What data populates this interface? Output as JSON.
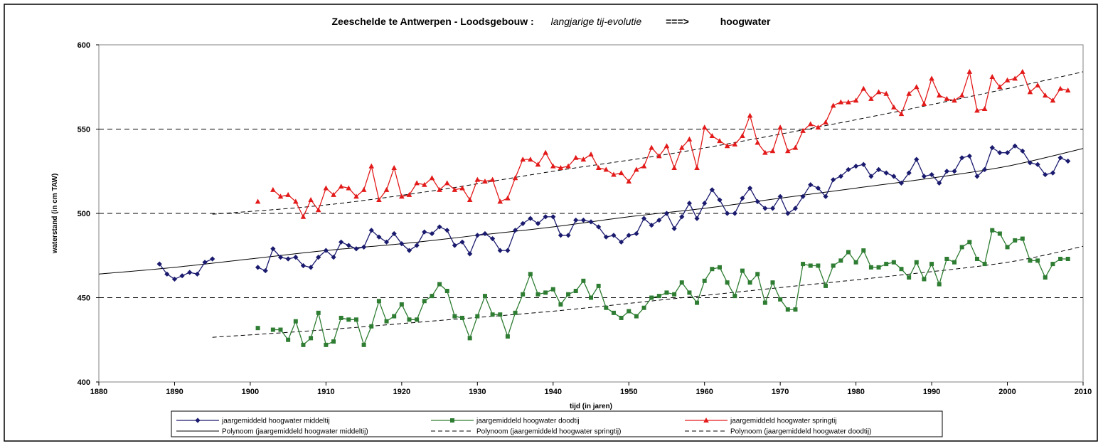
{
  "chart_data": {
    "type": "line",
    "title_parts": [
      "Zeeschelde te Antwerpen - Loodsgebouw :",
      "langjarige tij-evolutie",
      "===>",
      "hoogwater"
    ],
    "xlabel": "tijd   (in jaren)",
    "ylabel": "waterstand  (in cm TAW)",
    "xlim": [
      1880,
      2010
    ],
    "ylim": [
      400,
      600
    ],
    "xticks": [
      1880,
      1890,
      1900,
      1910,
      1920,
      1930,
      1940,
      1950,
      1960,
      1970,
      1980,
      1990,
      2000,
      2010
    ],
    "yticks": [
      400,
      450,
      500,
      550,
      600
    ],
    "grid": "horizontal-dashed",
    "legend_position": "bottom",
    "series": [
      {
        "name": "jaargemiddeld hoogwater middeltij",
        "color": "#1a1a6e",
        "marker": "diamond",
        "segments": [
          {
            "x": [
              1888,
              1889,
              1890,
              1891,
              1892,
              1893,
              1894,
              1895
            ],
            "y": [
              470,
              464,
              461,
              463,
              465,
              464,
              471,
              473
            ]
          },
          {
            "x": [
              1901,
              1902,
              1903,
              1904,
              1905,
              1906,
              1907,
              1908,
              1909,
              1910,
              1911,
              1912,
              1913,
              1914,
              1915,
              1916,
              1917,
              1918,
              1919,
              1920,
              1921,
              1922,
              1923,
              1924,
              1925,
              1926,
              1927,
              1928,
              1929,
              1930,
              1931,
              1932,
              1933,
              1934,
              1935,
              1936,
              1937,
              1938,
              1939,
              1940,
              1941,
              1942,
              1943,
              1944,
              1945,
              1946,
              1947,
              1948,
              1949,
              1950,
              1951,
              1952,
              1953,
              1954,
              1955,
              1956,
              1957,
              1958,
              1959,
              1960,
              1961,
              1962,
              1963,
              1964,
              1965,
              1966,
              1967,
              1968,
              1969,
              1970,
              1971,
              1972,
              1973,
              1974,
              1975,
              1976,
              1977,
              1978,
              1979,
              1980,
              1981,
              1982,
              1983,
              1984,
              1985,
              1986,
              1987,
              1988,
              1989,
              1990,
              1991,
              1992,
              1993,
              1994,
              1995,
              1996,
              1997,
              1998,
              1999,
              2000,
              2001,
              2002,
              2003,
              2004,
              2005,
              2006,
              2007,
              2008
            ],
            "y": [
              468,
              466,
              479,
              474,
              473,
              474,
              469,
              468,
              474,
              478,
              474,
              483,
              481,
              479,
              480,
              490,
              486,
              483,
              488,
              482,
              478,
              481,
              489,
              488,
              492,
              490,
              481,
              483,
              476,
              487,
              488,
              485,
              478,
              478,
              490,
              494,
              497,
              494,
              498,
              498,
              487,
              487,
              496,
              496,
              495,
              492,
              486,
              487,
              483,
              487,
              488,
              497,
              493,
              496,
              500,
              491,
              498,
              506,
              497,
              506,
              514,
              508,
              500,
              500,
              509,
              515,
              507,
              503,
              503,
              510,
              500,
              503,
              510,
              517,
              515,
              510,
              520,
              522,
              526,
              528,
              529,
              522,
              526,
              524,
              522,
              518,
              524,
              532,
              522,
              523,
              518,
              525,
              525,
              533,
              534,
              522,
              526,
              539,
              536,
              536,
              540,
              537,
              530,
              529,
              523,
              524,
              533,
              531
            ]
          }
        ]
      },
      {
        "name": "jaargemiddeld hoogwater doodtij",
        "color": "#2e7d32",
        "marker": "square",
        "segments": [
          {
            "x": [
              1901
            ],
            "y": [
              432
            ]
          },
          {
            "x": [
              1903,
              1904,
              1905,
              1906,
              1907,
              1908,
              1909,
              1910,
              1911,
              1912,
              1913,
              1914,
              1915,
              1916,
              1917,
              1918,
              1919,
              1920,
              1921,
              1922,
              1923,
              1924,
              1925,
              1926,
              1927,
              1928,
              1929,
              1930,
              1931,
              1932,
              1933,
              1934,
              1935,
              1936,
              1937,
              1938,
              1939,
              1940,
              1941,
              1942,
              1943,
              1944,
              1945,
              1946,
              1947,
              1948,
              1949,
              1950,
              1951,
              1952,
              1953,
              1954,
              1955,
              1956,
              1957,
              1958,
              1959,
              1960,
              1961,
              1962,
              1963,
              1964,
              1965,
              1966,
              1967,
              1968,
              1969,
              1970,
              1971,
              1972,
              1973,
              1974,
              1975,
              1976,
              1977,
              1978,
              1979,
              1980,
              1981,
              1982,
              1983,
              1984,
              1985,
              1986,
              1987,
              1988,
              1989,
              1990,
              1991,
              1992,
              1993,
              1994,
              1995,
              1996,
              1997,
              1998,
              1999,
              2000,
              2001,
              2002,
              2003,
              2004,
              2005,
              2006,
              2007,
              2008
            ],
            "y": [
              431,
              431,
              425,
              436,
              422,
              426,
              441,
              422,
              424,
              438,
              437,
              437,
              422,
              433,
              448,
              436,
              439,
              446,
              437,
              437,
              448,
              451,
              458,
              454,
              439,
              438,
              426,
              439,
              451,
              440,
              440,
              427,
              441,
              452,
              464,
              452,
              453,
              455,
              446,
              452,
              454,
              460,
              450,
              457,
              444,
              441,
              438,
              442,
              439,
              444,
              450,
              451,
              453,
              452,
              459,
              453,
              447,
              460,
              467,
              468,
              459,
              451,
              466,
              459,
              464,
              447,
              459,
              449,
              443,
              443,
              470,
              469,
              469,
              457,
              469,
              472,
              477,
              471,
              478,
              468,
              468,
              470,
              471,
              467,
              462,
              471,
              461,
              470,
              458,
              473,
              471,
              480,
              483,
              473,
              470,
              490,
              488,
              480,
              484,
              485,
              472,
              472,
              462,
              470,
              473,
              473
            ]
          }
        ]
      },
      {
        "name": "jaargemiddeld hoogwater springtij",
        "color": "#e31a1a",
        "marker": "triangle",
        "segments": [
          {
            "x": [
              1901
            ],
            "y": [
              507
            ]
          },
          {
            "x": [
              1903,
              1904,
              1905,
              1906,
              1907,
              1908,
              1909,
              1910,
              1911,
              1912,
              1913,
              1914,
              1915,
              1916,
              1917,
              1918,
              1919,
              1920,
              1921,
              1922,
              1923,
              1924,
              1925,
              1926,
              1927,
              1928,
              1929,
              1930,
              1931,
              1932,
              1933,
              1934,
              1935,
              1936,
              1937,
              1938,
              1939,
              1940,
              1941,
              1942,
              1943,
              1944,
              1945,
              1946,
              1947,
              1948,
              1949,
              1950,
              1951,
              1952,
              1953,
              1954,
              1955,
              1956,
              1957,
              1958,
              1959,
              1960,
              1961,
              1962,
              1963,
              1964,
              1965,
              1966,
              1967,
              1968,
              1969,
              1970,
              1971,
              1972,
              1973,
              1974,
              1975,
              1976,
              1977,
              1978,
              1979,
              1980,
              1981,
              1982,
              1983,
              1984,
              1985,
              1986,
              1987,
              1988,
              1989,
              1990,
              1991,
              1992,
              1993,
              1994,
              1995,
              1996,
              1997,
              1998,
              1999,
              2000,
              2001,
              2002,
              2003,
              2004,
              2005,
              2006,
              2007,
              2008
            ],
            "y": [
              514,
              510,
              511,
              507,
              498,
              508,
              502,
              515,
              511,
              516,
              515,
              510,
              514,
              528,
              508,
              514,
              527,
              510,
              511,
              518,
              517,
              521,
              514,
              518,
              514,
              515,
              508,
              520,
              519,
              520,
              507,
              509,
              521,
              532,
              532,
              529,
              536,
              528,
              527,
              528,
              533,
              532,
              535,
              527,
              526,
              523,
              524,
              519,
              526,
              528,
              539,
              534,
              540,
              527,
              539,
              544,
              527,
              551,
              546,
              543,
              540,
              541,
              546,
              558,
              542,
              536,
              537,
              551,
              537,
              539,
              549,
              553,
              551,
              554,
              564,
              566,
              566,
              567,
              574,
              568,
              572,
              571,
              563,
              559,
              571,
              575,
              565,
              580,
              570,
              568,
              567,
              570,
              584,
              561,
              562,
              581,
              575,
              579,
              580,
              584,
              572,
              576,
              570,
              567,
              574,
              573
            ]
          }
        ]
      }
    ],
    "trendlines": [
      {
        "name": "Polynoom (jaargemiddeld hoogwater middeltij)",
        "style": "solid",
        "x": [
          1880,
          1890,
          1900,
          1910,
          1920,
          1930,
          1940,
          1950,
          1960,
          1970,
          1980,
          1990,
          2000,
          2010
        ],
        "y": [
          464,
          468,
          473,
          478,
          482,
          487,
          492,
          498,
          503,
          509,
          515,
          521,
          528,
          538.5
        ]
      },
      {
        "name": "Polynoom (jaargemiddeld hoogwater springtij)",
        "style": "dashed",
        "x": [
          1895,
          1910,
          1925,
          1940,
          1955,
          1970,
          1985,
          2000,
          2010
        ],
        "y": [
          499.5,
          505,
          514,
          525,
          535,
          547,
          560,
          574,
          584
        ]
      },
      {
        "name": "Polynoom (jaargemiddeld hoogwater doodtij)",
        "style": "dashed",
        "x": [
          1895,
          1910,
          1925,
          1940,
          1955,
          1970,
          1985,
          2000,
          2010
        ],
        "y": [
          426.5,
          431,
          436.5,
          442,
          449,
          456,
          463,
          471,
          480.5
        ]
      }
    ]
  }
}
